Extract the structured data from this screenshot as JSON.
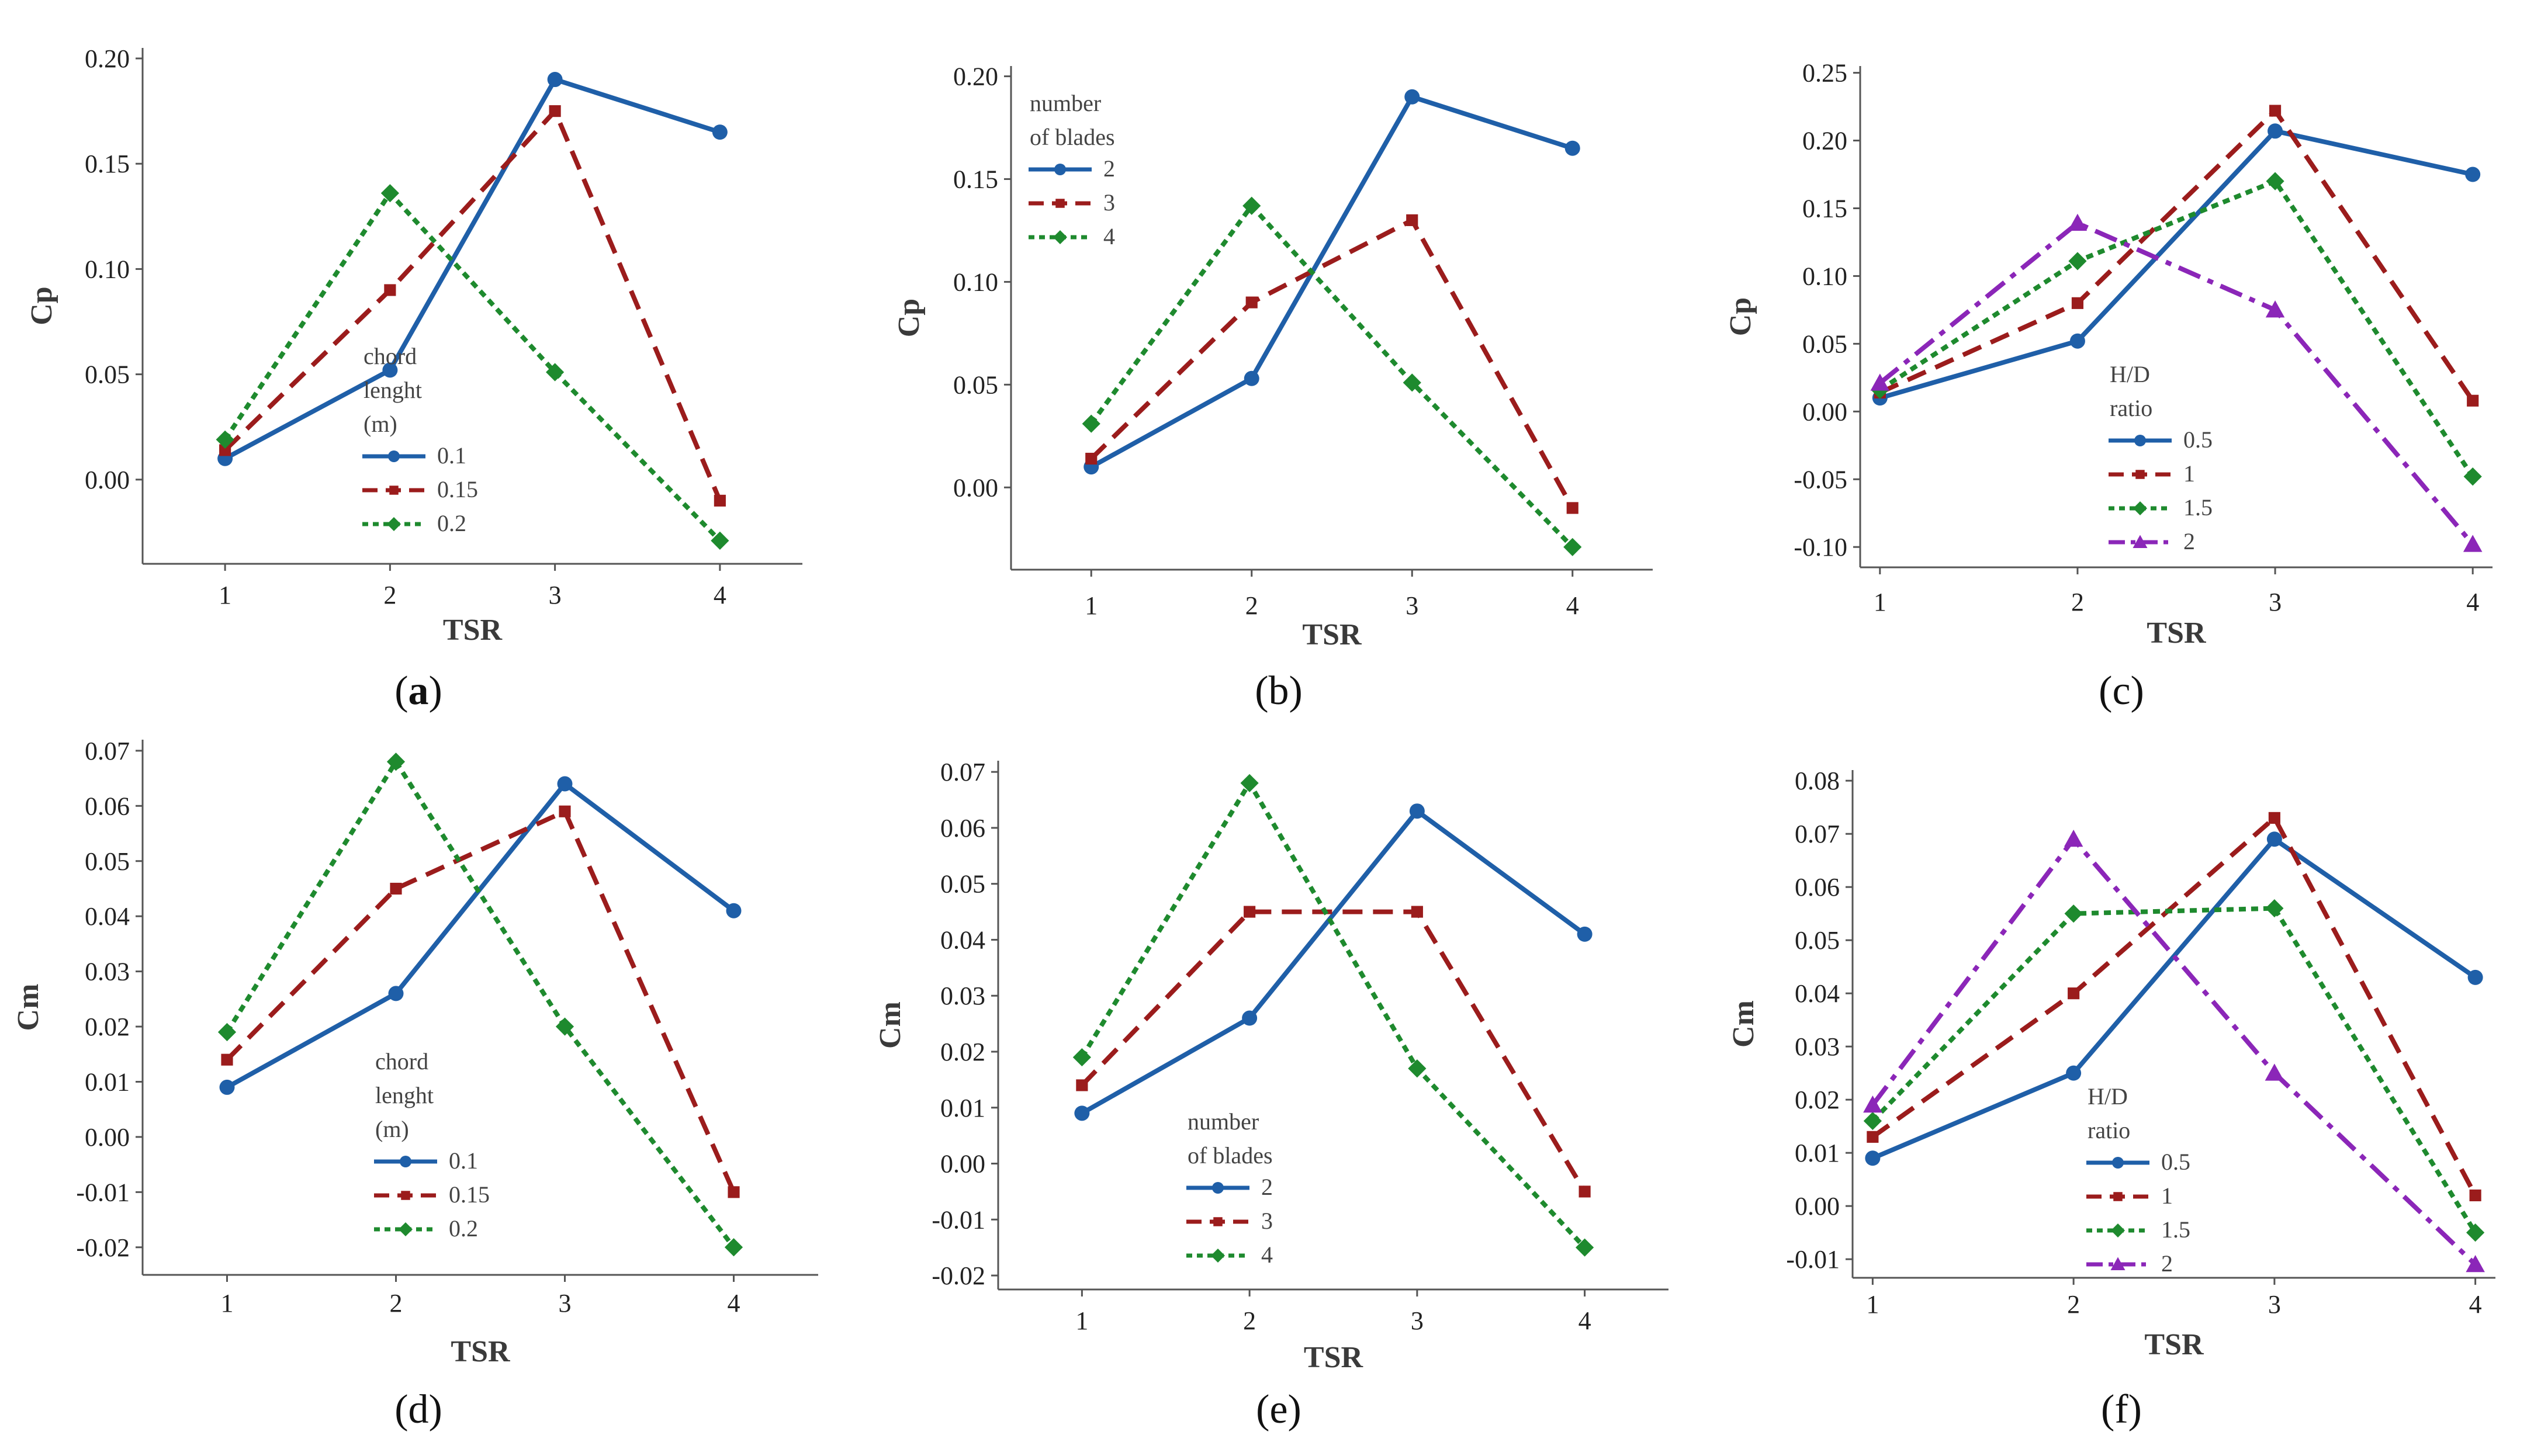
{
  "figure_title": "",
  "colors": {
    "blue": "#1f5fa8",
    "red": "#9b1c1c",
    "green": "#1e8a2e",
    "purple": "#8b26b8"
  },
  "chart_data": [
    {
      "id": "a",
      "type": "line",
      "panel_label": "a",
      "panel_label_bold": true,
      "xlabel": "TSR",
      "ylabel": "Cp",
      "x": [
        1,
        2,
        3,
        4
      ],
      "xlim": [
        0.5,
        4.5
      ],
      "ylim": [
        -0.04,
        0.205
      ],
      "xticks": [
        "1",
        "2",
        "3",
        "4"
      ],
      "yticks": [
        0.0,
        0.05,
        0.1,
        0.15,
        0.2
      ],
      "ytick_labels": [
        "0.00",
        "0.05",
        "0.10",
        "0.15",
        "0.20"
      ],
      "legend_title": [
        "chord",
        "lenght",
        "(m)"
      ],
      "series": [
        {
          "name": "0.1",
          "values": [
            0.01,
            0.052,
            0.19,
            0.165
          ],
          "color": "blue",
          "dash": "solid",
          "marker": "circle"
        },
        {
          "name": "0.15",
          "values": [
            0.014,
            0.09,
            0.175,
            -0.01
          ],
          "color": "red",
          "dash": "dashed",
          "marker": "square"
        },
        {
          "name": "0.2",
          "values": [
            0.019,
            0.136,
            0.051,
            -0.029
          ],
          "color": "green",
          "dash": "dotted",
          "marker": "diamond"
        }
      ]
    },
    {
      "id": "b",
      "type": "line",
      "panel_label": "b",
      "panel_label_bold": false,
      "xlabel": "TSR",
      "ylabel": "Cp",
      "x": [
        1,
        2,
        3,
        4
      ],
      "xlim": [
        0.5,
        4.5
      ],
      "ylim": [
        -0.04,
        0.205
      ],
      "xticks": [
        "1",
        "2",
        "3",
        "4"
      ],
      "yticks": [
        0.0,
        0.05,
        0.1,
        0.15,
        0.2
      ],
      "ytick_labels": [
        "0.00",
        "0.05",
        "0.10",
        "0.15",
        "0.20"
      ],
      "legend_title": [
        "number",
        "of blades"
      ],
      "series": [
        {
          "name": "2",
          "values": [
            0.01,
            0.053,
            0.19,
            0.165
          ],
          "color": "blue",
          "dash": "solid",
          "marker": "circle"
        },
        {
          "name": "3",
          "values": [
            0.014,
            0.09,
            0.13,
            -0.01
          ],
          "color": "red",
          "dash": "dashed",
          "marker": "square"
        },
        {
          "name": "4",
          "values": [
            0.031,
            0.137,
            0.051,
            -0.029
          ],
          "color": "green",
          "dash": "dotted",
          "marker": "diamond"
        }
      ]
    },
    {
      "id": "c",
      "type": "line",
      "panel_label": "c",
      "panel_label_bold": false,
      "xlabel": "TSR",
      "ylabel": "Cp",
      "x": [
        1,
        2,
        3,
        4
      ],
      "xlim": [
        0.9,
        4.1
      ],
      "ylim": [
        -0.115,
        0.255
      ],
      "xticks": [
        "1",
        "2",
        "3",
        "4"
      ],
      "yticks": [
        -0.1,
        -0.05,
        0.0,
        0.05,
        0.1,
        0.15,
        0.2,
        0.25
      ],
      "ytick_labels": [
        "-0.10",
        "-0.05",
        "0.00",
        "0.05",
        "0.10",
        "0.15",
        "0.20",
        "0.25"
      ],
      "legend_title": [
        "H/D",
        "ratio"
      ],
      "series": [
        {
          "name": "0.5",
          "values": [
            0.01,
            0.052,
            0.207,
            0.175
          ],
          "color": "blue",
          "dash": "solid",
          "marker": "circle"
        },
        {
          "name": "1",
          "values": [
            0.014,
            0.08,
            0.222,
            0.008
          ],
          "color": "red",
          "dash": "dashed",
          "marker": "square"
        },
        {
          "name": "1.5",
          "values": [
            0.016,
            0.111,
            0.17,
            -0.048
          ],
          "color": "green",
          "dash": "dotted",
          "marker": "diamond"
        },
        {
          "name": "2",
          "values": [
            0.021,
            0.139,
            0.075,
            -0.098
          ],
          "color": "purple",
          "dash": "dashdot",
          "marker": "triangle"
        }
      ]
    },
    {
      "id": "d",
      "type": "line",
      "panel_label": "d",
      "panel_label_bold": false,
      "xlabel": "TSR",
      "ylabel": "Cm",
      "x": [
        1,
        2,
        3,
        4
      ],
      "xlim": [
        0.5,
        4.5
      ],
      "ylim": [
        -0.025,
        0.072
      ],
      "xticks": [
        "1",
        "2",
        "3",
        "4"
      ],
      "yticks": [
        -0.02,
        -0.01,
        0.0,
        0.01,
        0.02,
        0.03,
        0.04,
        0.05,
        0.06,
        0.07
      ],
      "ytick_labels": [
        "-0.02",
        "-0.01",
        "0.00",
        "0.01",
        "0.02",
        "0.03",
        "0.04",
        "0.05",
        "0.06",
        "0.07"
      ],
      "legend_title": [
        "chord",
        "lenght",
        "(m)"
      ],
      "series": [
        {
          "name": "0.1",
          "values": [
            0.009,
            0.026,
            0.064,
            0.041
          ],
          "color": "blue",
          "dash": "solid",
          "marker": "circle"
        },
        {
          "name": "0.15",
          "values": [
            0.014,
            0.045,
            0.059,
            -0.01
          ],
          "color": "red",
          "dash": "dashed",
          "marker": "square"
        },
        {
          "name": "0.2",
          "values": [
            0.019,
            0.068,
            0.02,
            -0.02
          ],
          "color": "green",
          "dash": "dotted",
          "marker": "diamond"
        }
      ]
    },
    {
      "id": "e",
      "type": "line",
      "panel_label": "e",
      "panel_label_bold": false,
      "xlabel": "TSR",
      "ylabel": "Cm",
      "x": [
        1,
        2,
        3,
        4
      ],
      "xlim": [
        0.5,
        4.5
      ],
      "ylim": [
        -0.0225,
        0.072
      ],
      "xticks": [
        "1",
        "2",
        "3",
        "4"
      ],
      "yticks": [
        -0.02,
        -0.01,
        0.0,
        0.01,
        0.02,
        0.03,
        0.04,
        0.05,
        0.06,
        0.07
      ],
      "ytick_labels": [
        "-0.02",
        "-0.01",
        "0.00",
        "0.01",
        "0.02",
        "0.03",
        "0.04",
        "0.05",
        "0.06",
        "0.07"
      ],
      "legend_title": [
        "number",
        "of blades"
      ],
      "series": [
        {
          "name": "2",
          "values": [
            0.009,
            0.026,
            0.063,
            0.041
          ],
          "color": "blue",
          "dash": "solid",
          "marker": "circle"
        },
        {
          "name": "3",
          "values": [
            0.014,
            0.045,
            0.045,
            -0.005
          ],
          "color": "red",
          "dash": "dashed",
          "marker": "square"
        },
        {
          "name": "4",
          "values": [
            0.019,
            0.068,
            0.017,
            -0.015
          ],
          "color": "green",
          "dash": "dotted",
          "marker": "diamond"
        }
      ]
    },
    {
      "id": "f",
      "type": "line",
      "panel_label": "f",
      "panel_label_bold": false,
      "xlabel": "TSR",
      "ylabel": "Cm",
      "x": [
        1,
        2,
        3,
        4
      ],
      "xlim": [
        0.9,
        4.1
      ],
      "ylim": [
        -0.0135,
        0.082
      ],
      "xticks": [
        "1",
        "2",
        "3",
        "4"
      ],
      "yticks": [
        -0.01,
        0.0,
        0.01,
        0.02,
        0.03,
        0.04,
        0.05,
        0.06,
        0.07,
        0.08
      ],
      "ytick_labels": [
        "-0.01",
        "0.00",
        "0.01",
        "0.02",
        "0.03",
        "0.04",
        "0.05",
        "0.06",
        "0.07",
        "0.08"
      ],
      "legend_title": [
        "H/D",
        "ratio"
      ],
      "series": [
        {
          "name": "0.5",
          "values": [
            0.009,
            0.025,
            0.069,
            0.043
          ],
          "color": "blue",
          "dash": "solid",
          "marker": "circle"
        },
        {
          "name": "1",
          "values": [
            0.013,
            0.04,
            0.073,
            0.002
          ],
          "color": "red",
          "dash": "dashed",
          "marker": "square"
        },
        {
          "name": "1.5",
          "values": [
            0.016,
            0.055,
            0.056,
            -0.005
          ],
          "color": "green",
          "dash": "dotted",
          "marker": "diamond"
        },
        {
          "name": "2",
          "values": [
            0.019,
            0.069,
            0.025,
            -0.011
          ],
          "color": "purple",
          "dash": "dashdot",
          "marker": "triangle"
        }
      ]
    }
  ]
}
